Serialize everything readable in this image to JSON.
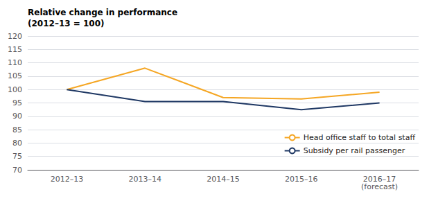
{
  "chart_data": {
    "type": "line",
    "ylabel": "Relative change in performance\n(2012–13 = 100)",
    "categories": [
      "2012–13",
      "2013–14",
      "2014–15",
      "2015–16",
      "2016–17\n(forecast)"
    ],
    "series": [
      {
        "name": "Head office staff to total staff",
        "color": "#F5A623",
        "values": [
          100,
          108,
          97,
          96.5,
          99
        ]
      },
      {
        "name": "Subsidy per rail passenger",
        "color": "#1F3864",
        "values": [
          100,
          95.5,
          95.5,
          92.5,
          95
        ]
      }
    ],
    "ylim": [
      70,
      120
    ],
    "yticks": [
      70,
      75,
      80,
      85,
      90,
      95,
      100,
      105,
      110,
      115,
      120
    ],
    "grid": true,
    "legend": "lower right"
  }
}
